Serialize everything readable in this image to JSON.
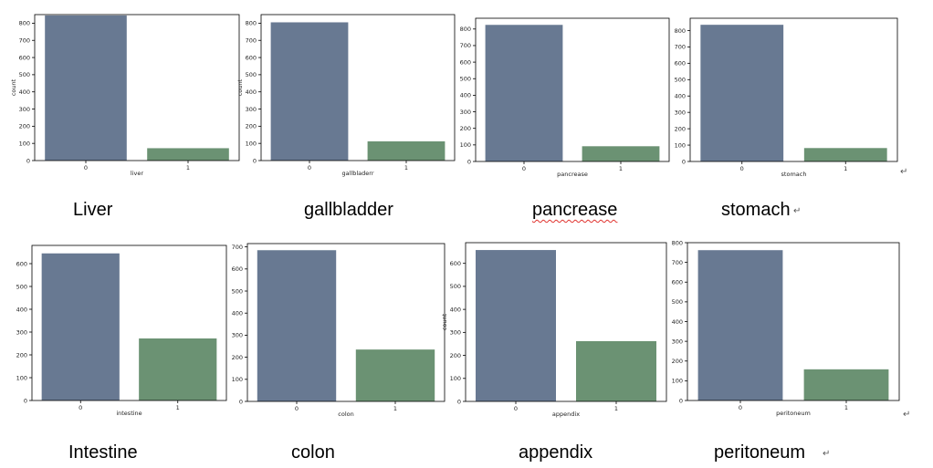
{
  "colors": {
    "bar_0": "#687992",
    "bar_1": "#6b9273"
  },
  "paragraph_mark": "↵",
  "chart_data": [
    {
      "type": "bar",
      "xlabel": "liver",
      "ylabel": "count",
      "categories": [
        "0",
        "1"
      ],
      "values": [
        845,
        72
      ],
      "ylim": [
        0,
        850
      ],
      "yticks": [
        0,
        100,
        200,
        300,
        400,
        500,
        600,
        700,
        800
      ],
      "caption": "Liver"
    },
    {
      "type": "bar",
      "xlabel": "gallbladerr",
      "ylabel": "count",
      "categories": [
        "0",
        "1"
      ],
      "values": [
        805,
        112
      ],
      "ylim": [
        0,
        850
      ],
      "yticks": [
        0,
        100,
        200,
        300,
        400,
        500,
        600,
        700,
        800
      ],
      "caption": "gallbladder"
    },
    {
      "type": "bar",
      "xlabel": "pancrease",
      "ylabel": "",
      "categories": [
        "0",
        "1"
      ],
      "values": [
        825,
        92
      ],
      "ylim": [
        0,
        865
      ],
      "yticks": [
        0,
        100,
        200,
        300,
        400,
        500,
        600,
        700,
        800
      ],
      "caption": "pancrease"
    },
    {
      "type": "bar",
      "xlabel": "stomach",
      "ylabel": "",
      "categories": [
        "0",
        "1"
      ],
      "values": [
        835,
        82
      ],
      "ylim": [
        0,
        875
      ],
      "yticks": [
        0,
        100,
        200,
        300,
        400,
        500,
        600,
        700,
        800
      ],
      "caption": "stomach"
    },
    {
      "type": "bar",
      "xlabel": "intestine",
      "ylabel": "",
      "categories": [
        "0",
        "1"
      ],
      "values": [
        645,
        272
      ],
      "ylim": [
        0,
        680
      ],
      "yticks": [
        0,
        100,
        200,
        300,
        400,
        500,
        600
      ],
      "caption": "Intestine"
    },
    {
      "type": "bar",
      "xlabel": "colon",
      "ylabel": "",
      "categories": [
        "0",
        "1"
      ],
      "values": [
        685,
        235
      ],
      "ylim": [
        0,
        715
      ],
      "yticks": [
        0,
        100,
        200,
        300,
        400,
        500,
        600,
        700
      ],
      "caption": "colon"
    },
    {
      "type": "bar",
      "xlabel": "appendix",
      "ylabel": "count",
      "categories": [
        "0",
        "1"
      ],
      "values": [
        658,
        262
      ],
      "ylim": [
        0,
        690
      ],
      "yticks": [
        0,
        100,
        200,
        300,
        400,
        500,
        600
      ],
      "caption": "appendix"
    },
    {
      "type": "bar",
      "xlabel": "peritoneum",
      "ylabel": "",
      "categories": [
        "0",
        "1"
      ],
      "values": [
        762,
        158
      ],
      "ylim": [
        0,
        800
      ],
      "yticks": [
        0,
        100,
        200,
        300,
        400,
        500,
        600,
        700,
        800
      ],
      "caption": "peritoneum"
    }
  ]
}
